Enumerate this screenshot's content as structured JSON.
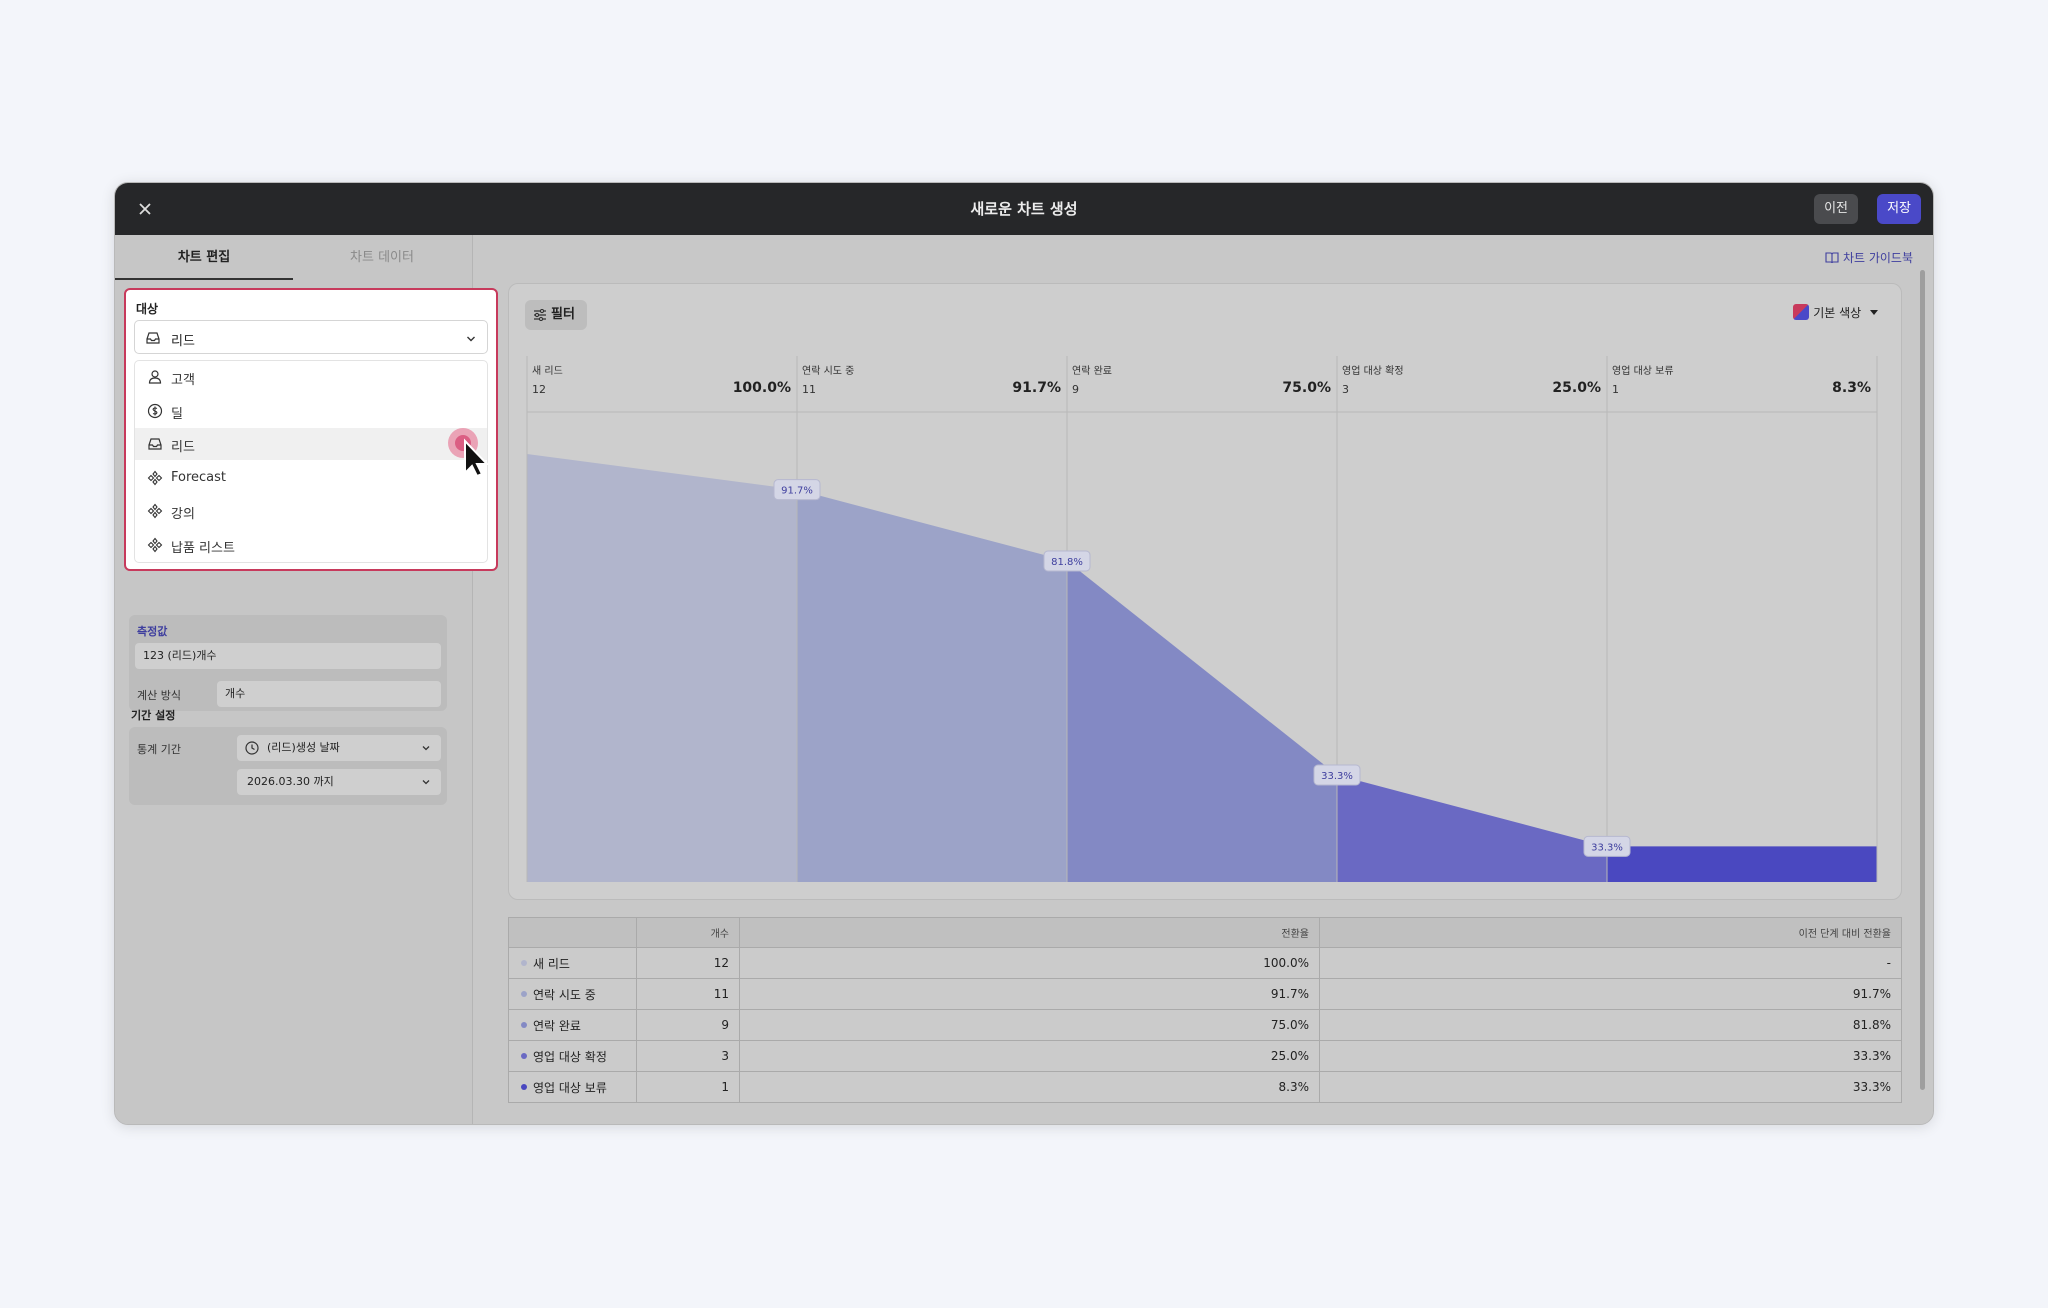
{
  "window": {
    "title": "새로운 차트 생성",
    "prev_label": "이전",
    "save_label": "저장"
  },
  "left": {
    "tabs": [
      "차트 편집",
      "차트 데이터"
    ],
    "target": {
      "label": "대상",
      "selected": "리드",
      "options": [
        {
          "label": "고객",
          "icon": "person-icon"
        },
        {
          "label": "딜",
          "icon": "dollar-icon"
        },
        {
          "label": "리드",
          "icon": "inbox-icon"
        },
        {
          "label": "Forecast",
          "icon": "diamond-icon"
        },
        {
          "label": "강의",
          "icon": "diamond-icon"
        },
        {
          "label": "납품 리스트",
          "icon": "diamond-icon"
        }
      ]
    },
    "measure": {
      "label": "측정값",
      "value": "123 (리드)개수",
      "calc_label": "계산 방식",
      "calc_value": "개수"
    },
    "period": {
      "label": "기간 설정",
      "stat_label": "통계 기간",
      "date_field": "(리드)생성 날짜",
      "until": "2026.03.30 까지"
    }
  },
  "right": {
    "guide_label": "차트 가이드북",
    "filter_label": "필터",
    "color_label": "기본 색상"
  },
  "chart_data": {
    "type": "area",
    "stages": [
      {
        "name": "새 리드",
        "count": 12,
        "rate": "100.0%",
        "prev": "-",
        "color": "#b1b5cc"
      },
      {
        "name": "연락 시도 중",
        "count": 11,
        "rate": "91.7%",
        "prev": "91.7%",
        "color": "#9ca3c8"
      },
      {
        "name": "연락 완료",
        "count": 9,
        "rate": "75.0%",
        "prev": "81.8%",
        "color": "#8389c4"
      },
      {
        "name": "영업 대상 확정",
        "count": 3,
        "rate": "25.0%",
        "prev": "33.3%",
        "color": "#6a69c3"
      },
      {
        "name": "영업 대상 보류",
        "count": 1,
        "rate": "8.3%",
        "prev": "33.3%",
        "color": "#4a48c0"
      }
    ],
    "transition_labels": [
      "91.7%",
      "81.8%",
      "33.3%",
      "33.3%"
    ]
  },
  "table": {
    "headers": [
      "",
      "개수",
      "전환율",
      "이전 단계 대비 전환율"
    ]
  }
}
